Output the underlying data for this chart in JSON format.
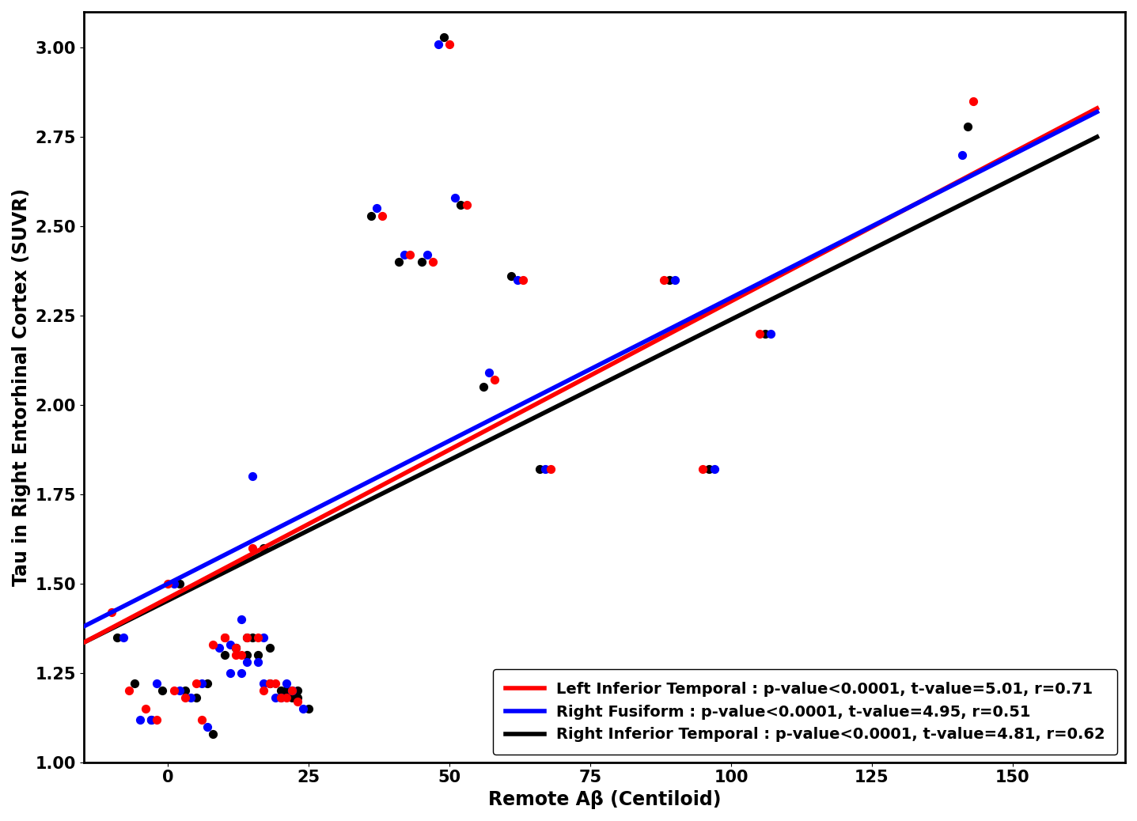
{
  "xlabel": "Remote Aβ (Centiloid)",
  "ylabel": "Tau in Right Entorhinal Cortex (SUVR)",
  "xlim": [
    -15,
    170
  ],
  "ylim": [
    1.0,
    3.1
  ],
  "xticks": [
    0,
    25,
    50,
    75,
    100,
    125,
    150
  ],
  "yticks": [
    1.0,
    1.25,
    1.5,
    1.75,
    2.0,
    2.25,
    2.5,
    2.75,
    3.0
  ],
  "red_x": [
    -10,
    -7,
    -4,
    -2,
    0,
    1,
    3,
    5,
    6,
    8,
    10,
    12,
    14,
    15,
    17,
    18,
    20,
    22,
    23,
    10,
    12,
    13,
    16,
    19,
    21,
    38,
    43,
    47,
    50,
    53,
    58,
    63,
    68,
    88,
    95,
    105,
    143
  ],
  "red_y": [
    1.42,
    1.2,
    1.15,
    1.12,
    1.5,
    1.2,
    1.18,
    1.22,
    1.12,
    1.33,
    1.35,
    1.3,
    1.35,
    1.6,
    1.2,
    1.22,
    1.18,
    1.2,
    1.17,
    1.35,
    1.32,
    1.3,
    1.35,
    1.22,
    1.18,
    2.53,
    2.42,
    2.4,
    3.01,
    2.56,
    2.07,
    2.35,
    1.82,
    2.35,
    1.82,
    2.2,
    2.85
  ],
  "blue_x": [
    -8,
    -5,
    -3,
    -2,
    1,
    2,
    4,
    6,
    7,
    9,
    11,
    13,
    15,
    16,
    17,
    19,
    21,
    22,
    24,
    11,
    13,
    14,
    17,
    20,
    22,
    37,
    42,
    46,
    48,
    51,
    57,
    62,
    67,
    90,
    97,
    107,
    141
  ],
  "blue_y": [
    1.35,
    1.12,
    1.12,
    1.22,
    1.5,
    1.2,
    1.18,
    1.22,
    1.1,
    1.32,
    1.25,
    1.4,
    1.8,
    1.28,
    1.22,
    1.18,
    1.22,
    1.2,
    1.15,
    1.33,
    1.25,
    1.28,
    1.35,
    1.18,
    1.2,
    2.55,
    2.42,
    2.42,
    3.01,
    2.58,
    2.09,
    2.35,
    1.82,
    2.35,
    1.82,
    2.2,
    2.7
  ],
  "black_x": [
    -9,
    -6,
    -3,
    -1,
    2,
    3,
    5,
    7,
    8,
    10,
    12,
    14,
    16,
    17,
    18,
    20,
    22,
    23,
    25,
    12,
    14,
    15,
    18,
    21,
    23,
    36,
    41,
    45,
    49,
    52,
    56,
    61,
    66,
    89,
    96,
    106,
    142
  ],
  "black_y": [
    1.35,
    1.22,
    1.12,
    1.2,
    1.5,
    1.2,
    1.18,
    1.22,
    1.08,
    1.3,
    1.32,
    1.35,
    1.3,
    1.6,
    1.22,
    1.2,
    1.18,
    1.2,
    1.15,
    1.32,
    1.3,
    1.35,
    1.32,
    1.2,
    1.18,
    2.53,
    2.4,
    2.4,
    3.03,
    2.56,
    2.05,
    2.36,
    1.82,
    2.35,
    1.82,
    2.2,
    2.78
  ],
  "red_line_x": [
    -15,
    165
  ],
  "red_line_y": [
    1.335,
    2.83
  ],
  "blue_line_x": [
    -15,
    165
  ],
  "blue_line_y": [
    1.38,
    2.82
  ],
  "black_line_x": [
    -15,
    165
  ],
  "black_line_y": [
    1.335,
    2.75
  ],
  "legend_labels": [
    "Left Inferior Temporal : p-value<0.0001, t-value=5.01, r=0.71",
    "Right Fusiform : p-value<0.0001, t-value=4.95, r=0.51",
    "Right Inferior Temporal : p-value<0.0001, t-value=4.81, r=0.62"
  ],
  "dot_size": 50,
  "line_width": 4.0,
  "axis_label_fontsize": 17,
  "tick_fontsize": 15,
  "legend_fontsize": 14
}
